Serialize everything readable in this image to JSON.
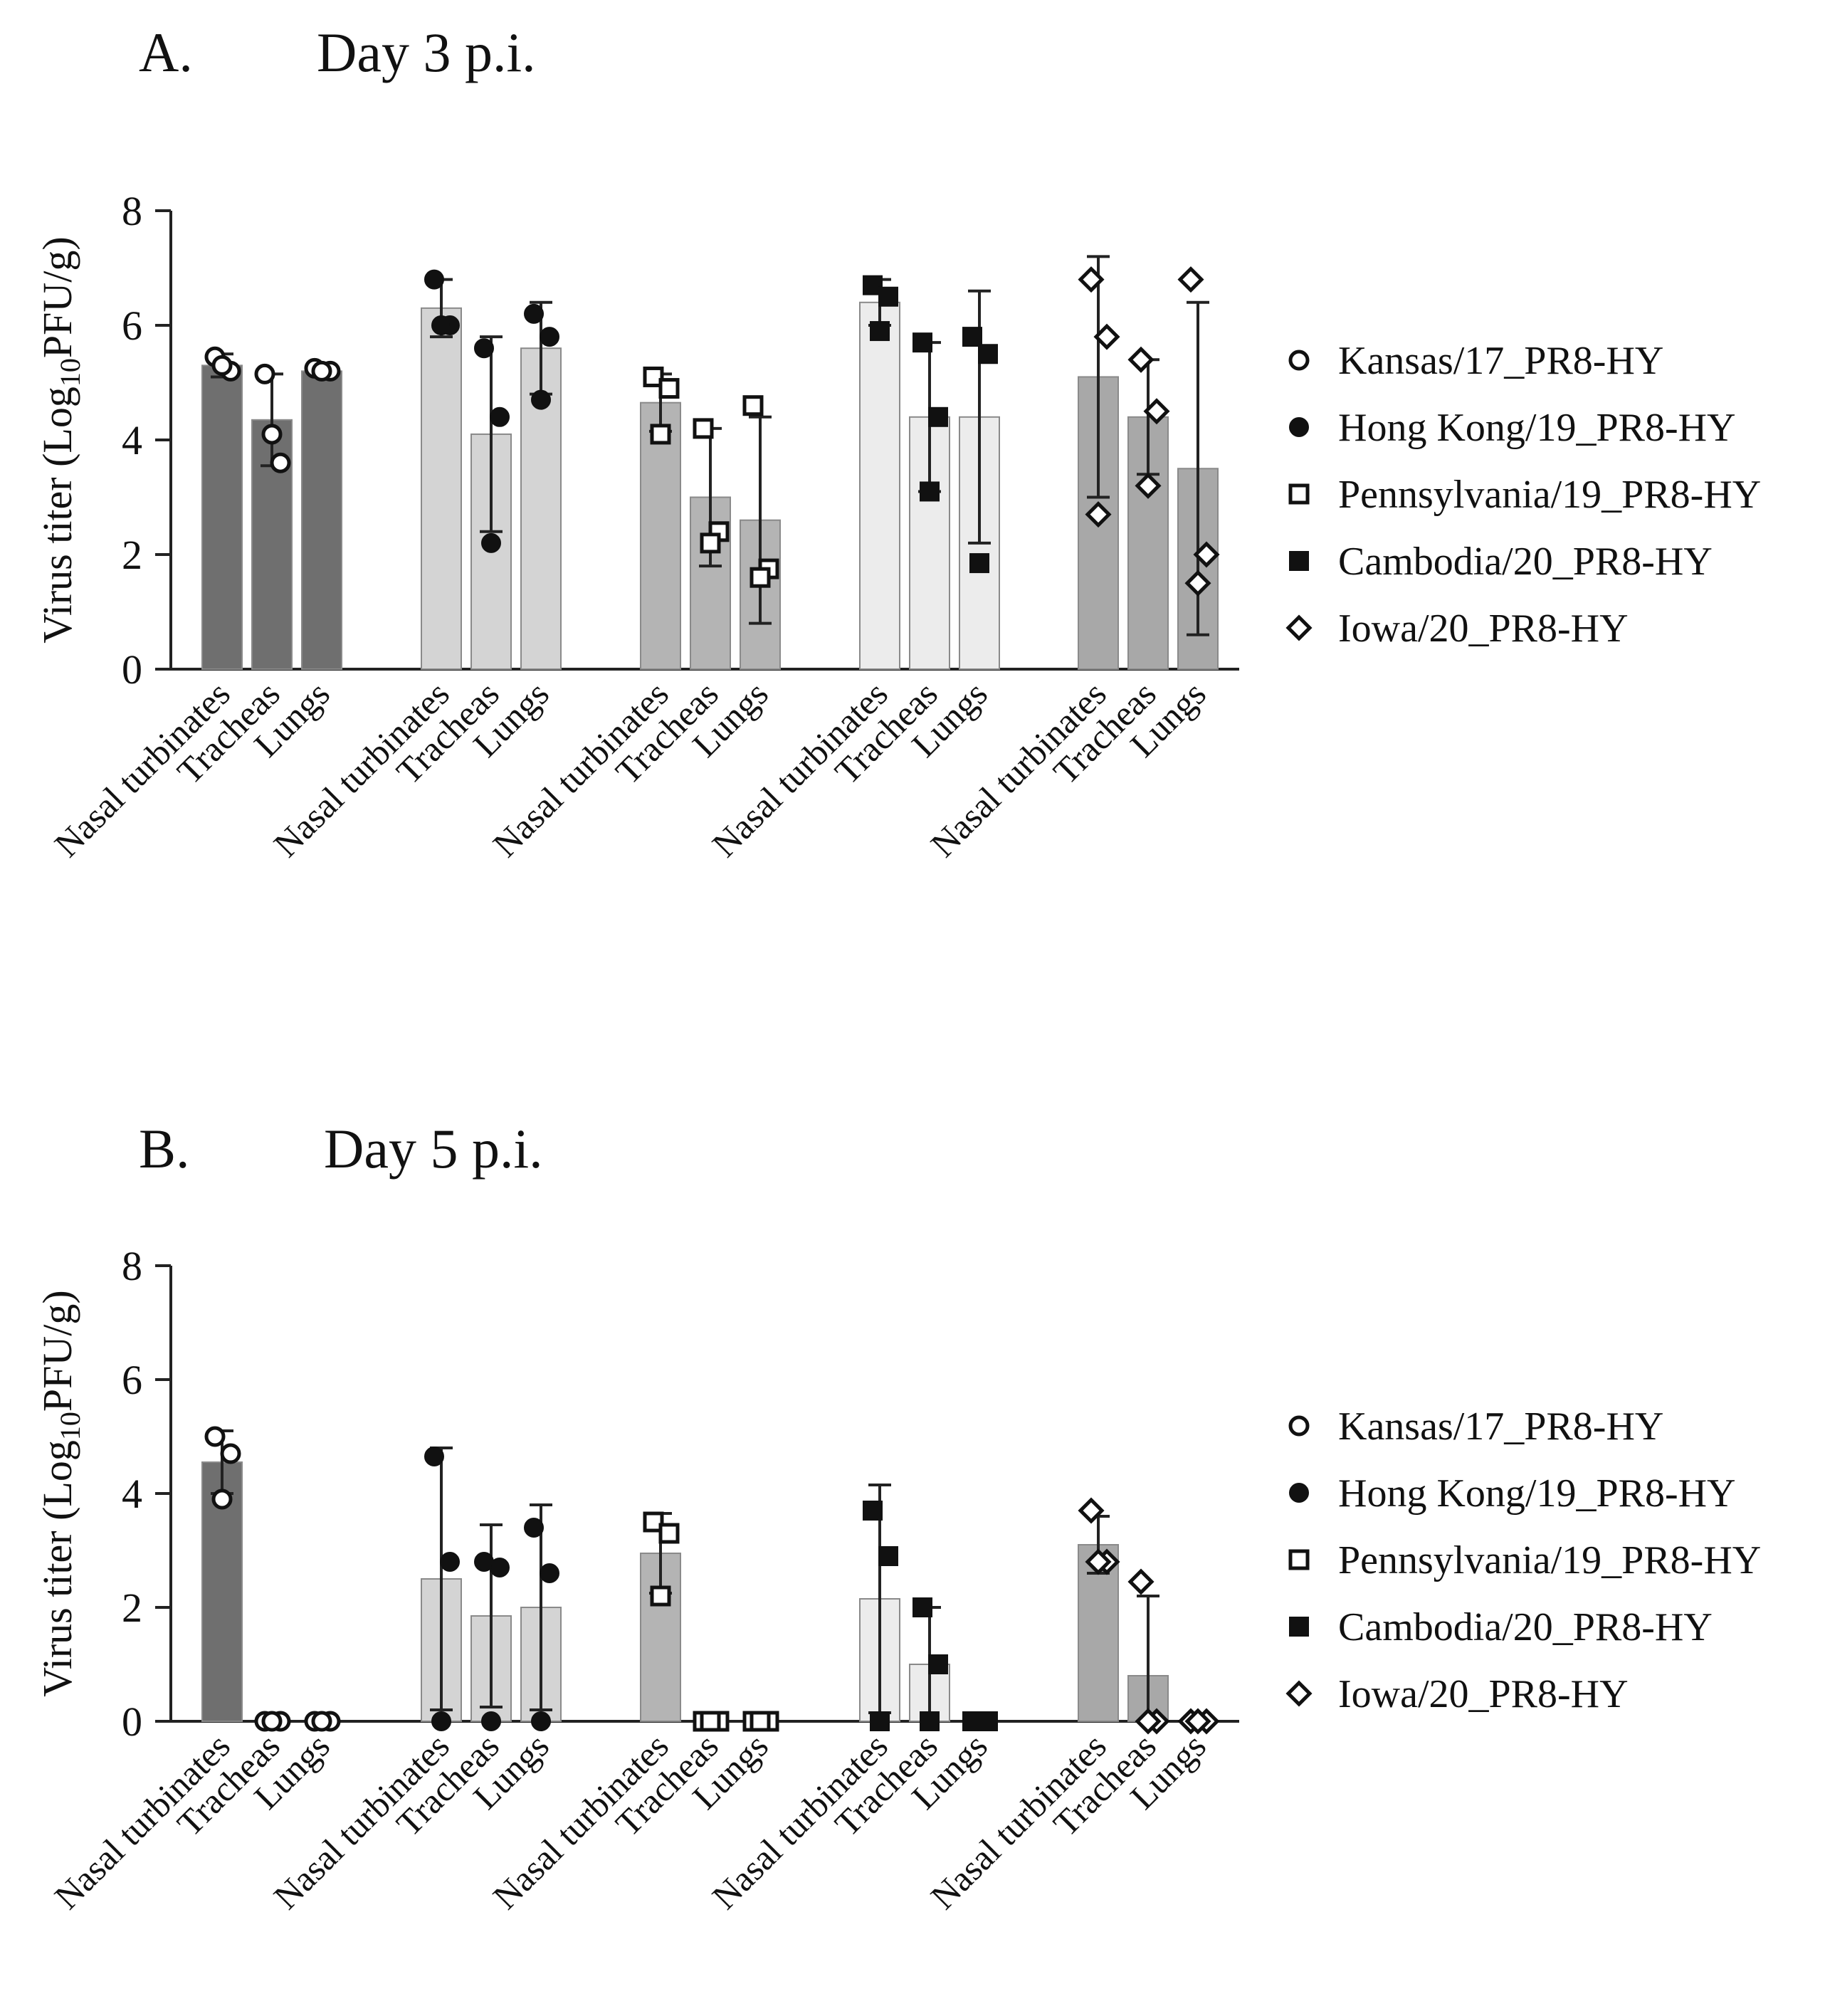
{
  "legend": {
    "items": [
      {
        "label": "Kansas/17_PR8-HY",
        "marker": "circle-open"
      },
      {
        "label": "Hong Kong/19_PR8-HY",
        "marker": "circle-filled"
      },
      {
        "label": "Pennsylvania/19_PR8-HY",
        "marker": "square-open"
      },
      {
        "label": "Cambodia/20_PR8-HY",
        "marker": "square-filled"
      },
      {
        "label": "Iowa/20_PR8-HY",
        "marker": "diamond-open"
      }
    ]
  },
  "colors": {
    "group_fills": [
      "#6f6f6f",
      "#d4d4d4",
      "#b4b4b4",
      "#ececec",
      "#a8a8a8"
    ],
    "axis": "#222222",
    "marker": "#111111"
  },
  "chart_data": [
    {
      "type": "bar",
      "panel_letter": "A.",
      "title": "Day 3 p.i.",
      "ylabel_main": "Virus titer (Log",
      "ylabel_sub": "10",
      "ylabel_tail": "PFU/g)",
      "ylim": [
        0,
        8
      ],
      "yticks": [
        "0",
        "2",
        "4",
        "6",
        "8"
      ],
      "categories": [
        "Nasal turbinates",
        "Tracheas",
        "Lungs"
      ],
      "groups": [
        {
          "name": "Kansas/17_PR8-HY",
          "marker": "circle-open",
          "means": [
            5.3,
            4.35,
            5.2
          ],
          "errors": [
            0.2,
            0.8,
            0.05
          ],
          "points": [
            [
              5.45,
              5.2,
              5.3
            ],
            [
              5.15,
              3.6,
              4.1
            ],
            [
              5.25,
              5.2,
              5.2
            ]
          ]
        },
        {
          "name": "Hong Kong/19_PR8-HY",
          "marker": "circle-filled",
          "means": [
            6.3,
            4.1,
            5.6
          ],
          "errors": [
            0.5,
            1.7,
            0.8
          ],
          "points": [
            [
              6.8,
              6.0,
              6.0
            ],
            [
              5.6,
              4.4,
              2.2
            ],
            [
              6.2,
              5.8,
              4.7
            ]
          ]
        },
        {
          "name": "Pennsylvania/19_PR8-HY",
          "marker": "square-open",
          "means": [
            4.65,
            3.0,
            2.6
          ],
          "errors": [
            0.5,
            1.2,
            1.8
          ],
          "points": [
            [
              5.1,
              4.9,
              4.1
            ],
            [
              4.2,
              2.4,
              2.2
            ],
            [
              4.6,
              1.75,
              1.6
            ]
          ]
        },
        {
          "name": "Cambodia/20_PR8-HY",
          "marker": "square-filled",
          "means": [
            6.4,
            4.4,
            4.4
          ],
          "errors": [
            0.4,
            1.3,
            2.2
          ],
          "points": [
            [
              6.7,
              6.5,
              5.9
            ],
            [
              5.7,
              4.4,
              3.1
            ],
            [
              5.8,
              5.5,
              1.85
            ]
          ]
        },
        {
          "name": "Iowa/20_PR8-HY",
          "marker": "diamond-open",
          "means": [
            5.1,
            4.4,
            3.5
          ],
          "errors": [
            2.1,
            1.0,
            2.9
          ],
          "points": [
            [
              6.8,
              5.8,
              2.7
            ],
            [
              5.4,
              4.5,
              3.2
            ],
            [
              6.8,
              2.0,
              1.5
            ]
          ]
        }
      ]
    },
    {
      "type": "bar",
      "panel_letter": "B.",
      "title": "Day 5 p.i.",
      "ylabel_main": "Virus titer (Log",
      "ylabel_sub": "10",
      "ylabel_tail": "PFU/g)",
      "ylim": [
        0,
        8
      ],
      "yticks": [
        "0",
        "2",
        "4",
        "6",
        "8"
      ],
      "categories": [
        "Nasal turbinates",
        "Tracheas",
        "Lungs"
      ],
      "groups": [
        {
          "name": "Kansas/17_PR8-HY",
          "marker": "circle-open",
          "means": [
            4.55,
            0,
            0
          ],
          "errors": [
            0.55,
            0,
            0
          ],
          "points": [
            [
              5.0,
              4.7,
              3.9
            ],
            [
              0,
              0,
              0
            ],
            [
              0,
              0,
              0
            ]
          ]
        },
        {
          "name": "Hong Kong/19_PR8-HY",
          "marker": "circle-filled",
          "means": [
            2.5,
            1.85,
            2.0
          ],
          "errors": [
            2.3,
            1.6,
            1.8
          ],
          "points": [
            [
              4.65,
              2.8,
              0
            ],
            [
              2.8,
              2.7,
              0
            ],
            [
              3.4,
              2.6,
              0
            ]
          ]
        },
        {
          "name": "Pennsylvania/19_PR8-HY",
          "marker": "square-open",
          "means": [
            2.95,
            0,
            0
          ],
          "errors": [
            0.7,
            0,
            0
          ],
          "points": [
            [
              3.5,
              3.3,
              2.2
            ],
            [
              0,
              0,
              0
            ],
            [
              0,
              0,
              0
            ]
          ]
        },
        {
          "name": "Cambodia/20_PR8-HY",
          "marker": "square-filled",
          "means": [
            2.15,
            1.0,
            0
          ],
          "errors": [
            2.0,
            1.0,
            0
          ],
          "points": [
            [
              3.7,
              2.9,
              0
            ],
            [
              2.0,
              1.0,
              0
            ],
            [
              0,
              0,
              0
            ]
          ]
        },
        {
          "name": "Iowa/20_PR8-HY",
          "marker": "diamond-open",
          "means": [
            3.1,
            0.8,
            0
          ],
          "errors": [
            0.5,
            1.4,
            0
          ],
          "points": [
            [
              3.7,
              2.8,
              2.8
            ],
            [
              2.45,
              0,
              0
            ],
            [
              0,
              0,
              0
            ]
          ]
        }
      ]
    }
  ]
}
